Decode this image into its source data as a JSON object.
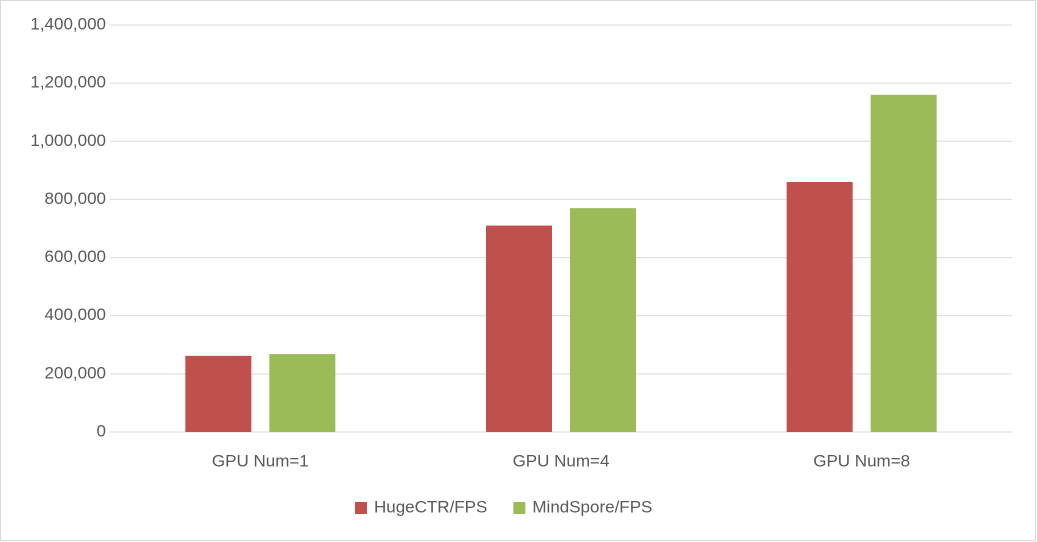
{
  "chart_data": {
    "type": "bar",
    "categories": [
      "GPU Num=1",
      "GPU Num=4",
      "GPU Num=8"
    ],
    "series": [
      {
        "name": "HugeCTR/FPS",
        "color": "#c0504d",
        "values": [
          262000,
          710000,
          860000
        ]
      },
      {
        "name": "MindSpore/FPS",
        "color": "#9bbb59",
        "values": [
          268000,
          770000,
          1160000
        ]
      }
    ],
    "ylim": [
      0,
      1400000
    ],
    "yticks": [
      0,
      {
        "value": 200000,
        "label": "200,000"
      },
      {
        "value": 400000,
        "label": "400,000"
      },
      {
        "value": 600000,
        "label": "600,000"
      },
      {
        "value": 800000,
        "label": "800,000"
      },
      {
        "value": 1000000,
        "label": "1,000,000"
      },
      {
        "value": 1200000,
        "label": "1,200,000"
      },
      {
        "value": 1400000,
        "label": "1,400,000"
      }
    ],
    "grid": true,
    "legend": "bottom"
  }
}
